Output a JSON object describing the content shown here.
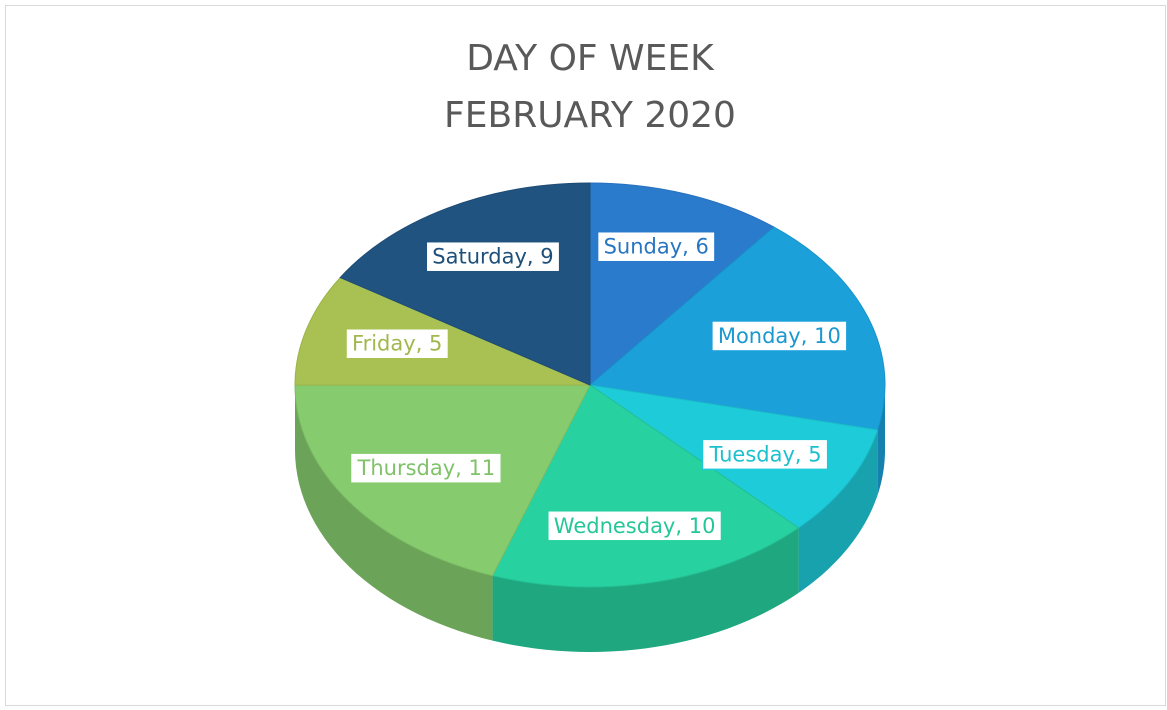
{
  "chart_data": {
    "type": "pie",
    "title": [
      "DAY OF WEEK",
      "FEBRUARY 2020"
    ],
    "categories": [
      "Sunday",
      "Monday",
      "Tuesday",
      "Wednesday",
      "Thursday",
      "Friday",
      "Saturday"
    ],
    "values": [
      6,
      10,
      5,
      10,
      11,
      5,
      9
    ],
    "label_separator": ", ",
    "colors": [
      "#2a7bcc",
      "#1ba0da",
      "#1ecbd9",
      "#27d1a0",
      "#86cc6e",
      "#a9c152",
      "#20537f"
    ]
  }
}
